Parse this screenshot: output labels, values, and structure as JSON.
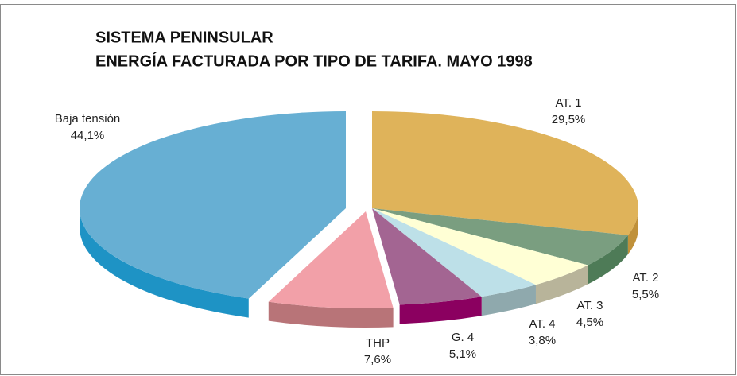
{
  "chart_data": {
    "type": "pie",
    "title": "SISTEMA PENINSULAR",
    "subtitle": "ENERGÍA FACTURADA POR TIPO DE TARIFA. MAYO 1998",
    "categories": [
      "AT. 1",
      "AT. 2",
      "AT. 3",
      "AT. 4",
      "G. 4",
      "THP",
      "Baja tensión"
    ],
    "values": [
      29.5,
      5.5,
      4.5,
      3.8,
      5.1,
      7.6,
      44.1
    ],
    "value_labels": [
      "29,5%",
      "5,5%",
      "4,5%",
      "3,8%",
      "5,1%",
      "7,6%",
      "44,1%"
    ],
    "colors": [
      "#dfb35a",
      "#7a9e80",
      "#ffffd5",
      "#bde0e8",
      "#a36592",
      "#f2a0a8",
      "#67afd3"
    ],
    "side_colors": [
      "#c0913a",
      "#4e7b57",
      "#b8b49a",
      "#8fa9ad",
      "#8b0060",
      "#b87478",
      "#1e93c5"
    ]
  }
}
